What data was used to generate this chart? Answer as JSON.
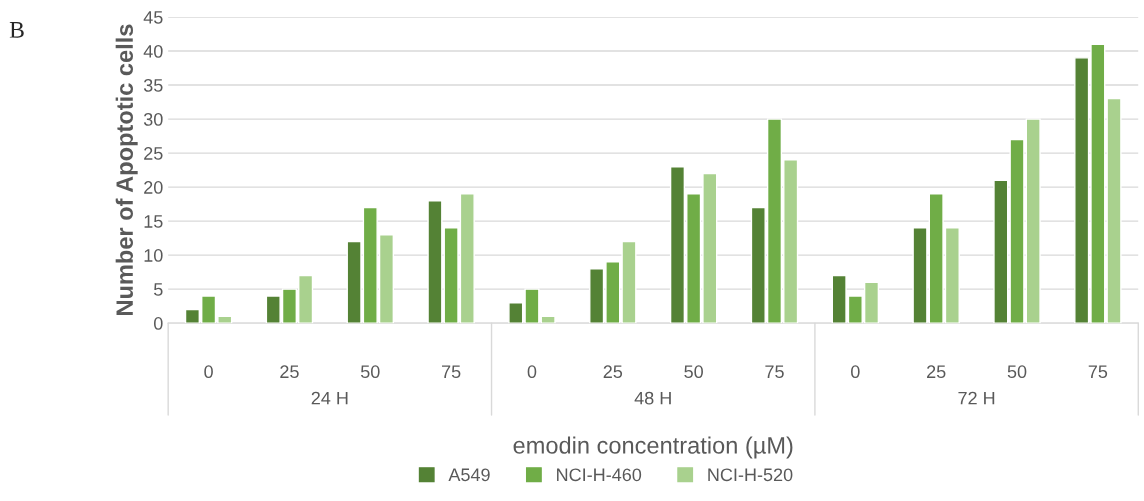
{
  "chart_data": {
    "type": "bar",
    "categories": [
      "0",
      "25",
      "50",
      "75",
      "0",
      "25",
      "50",
      "75",
      "0",
      "25",
      "50",
      "75"
    ],
    "series": [
      {
        "name": "A549",
        "color": "#548235",
        "values": [
          2,
          4,
          12,
          18,
          3,
          8,
          23,
          17,
          7,
          14,
          21,
          39
        ]
      },
      {
        "name": "NCI-H-460",
        "color": "#70ad47",
        "values": [
          4,
          5,
          17,
          14,
          5,
          9,
          19,
          30,
          4,
          19,
          27,
          41
        ]
      },
      {
        "name": "NCI-H-520",
        "color": "#a9d18e",
        "values": [
          1,
          7,
          13,
          19,
          1,
          12,
          22,
          24,
          6,
          14,
          30,
          33
        ]
      }
    ],
    "xlabel": "emodin concentration (µM)",
    "ylabel": "Number of Apoptotic cells",
    "annotations": [
      "B",
      "24 H",
      "48 H",
      "72 H"
    ],
    "ylim": [
      0,
      45
    ],
    "yticks": [
      0,
      5,
      10,
      15,
      20,
      25,
      30,
      35,
      40,
      45
    ],
    "grid": "y",
    "legend": "bottom"
  }
}
